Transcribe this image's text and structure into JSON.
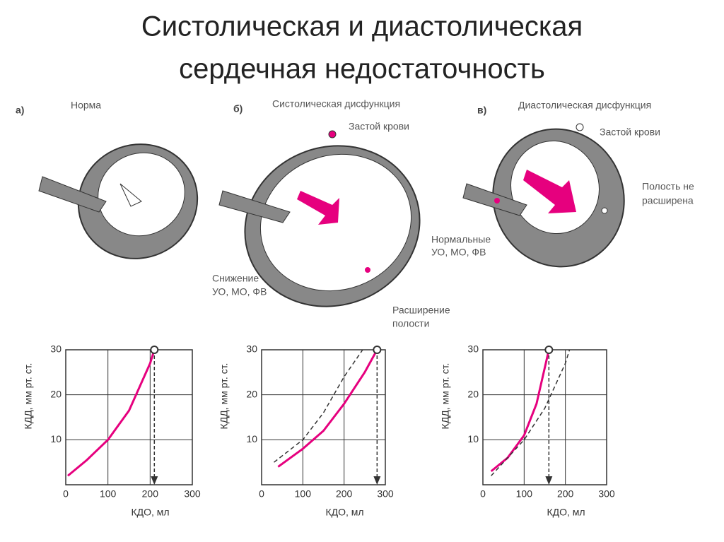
{
  "header": {
    "title_line1": "Систолическая и диастолическая",
    "title_line2": "сердечная недостаточность"
  },
  "panels": [
    {
      "letter": "а)",
      "title": "Норма",
      "notes": []
    },
    {
      "letter": "б)",
      "title": "Систолическая дисфункция",
      "notes": [
        "Застой крови",
        "Снижение",
        "УО, МО, ФВ",
        "Расширение",
        "полости"
      ]
    },
    {
      "letter": "в)",
      "title": "Диастолическая дисфункция",
      "notes": [
        "Застой крови",
        "Полость не",
        "расширена",
        "Нормальные",
        "УО, МО, ФВ"
      ]
    }
  ],
  "chart_data": [
    {
      "type": "line",
      "xlabel": "КДО, мл",
      "ylabel": "КДД, мм рт. ст.",
      "xlim": [
        0,
        300
      ],
      "ylim": [
        0,
        30
      ],
      "xticks": [
        0,
        100,
        200,
        300
      ],
      "yticks": [
        10,
        20,
        30
      ],
      "grid": true,
      "series": [
        {
          "color": "#e6007e",
          "dashed": false,
          "x": [
            5,
            50,
            100,
            150,
            200,
            210
          ],
          "values": [
            2,
            5.5,
            10,
            16.5,
            27,
            30
          ]
        }
      ],
      "marker": {
        "x": 210,
        "y": 30
      }
    },
    {
      "type": "line",
      "xlabel": "КДО, мл",
      "ylabel": "КДД, мм рт. ст.",
      "xlim": [
        0,
        300
      ],
      "ylim": [
        0,
        30
      ],
      "xticks": [
        0,
        100,
        200,
        300
      ],
      "yticks": [
        10,
        20,
        30
      ],
      "grid": true,
      "series": [
        {
          "color": "#e6007e",
          "dashed": false,
          "x": [
            40,
            100,
            150,
            200,
            250,
            280
          ],
          "values": [
            4,
            8,
            12,
            18,
            25,
            30
          ]
        },
        {
          "color": "#333333",
          "dashed": true,
          "x": [
            30,
            100,
            150,
            200,
            245
          ],
          "values": [
            5,
            10,
            16,
            24,
            30
          ]
        }
      ],
      "marker": {
        "x": 280,
        "y": 30
      }
    },
    {
      "type": "line",
      "xlabel": "КДО, мл",
      "ylabel": "КДД, мм рт. ст.",
      "xlim": [
        0,
        300
      ],
      "ylim": [
        0,
        30
      ],
      "xticks": [
        0,
        100,
        200,
        300
      ],
      "yticks": [
        10,
        20,
        30
      ],
      "grid": true,
      "series": [
        {
          "color": "#e6007e",
          "dashed": false,
          "x": [
            20,
            60,
            100,
            130,
            160
          ],
          "values": [
            3,
            6,
            11,
            18,
            30
          ]
        },
        {
          "color": "#333333",
          "dashed": true,
          "x": [
            20,
            100,
            150,
            200,
            210
          ],
          "values": [
            2,
            10,
            17,
            27,
            30
          ]
        }
      ],
      "marker": {
        "x": 160,
        "y": 30
      }
    }
  ]
}
